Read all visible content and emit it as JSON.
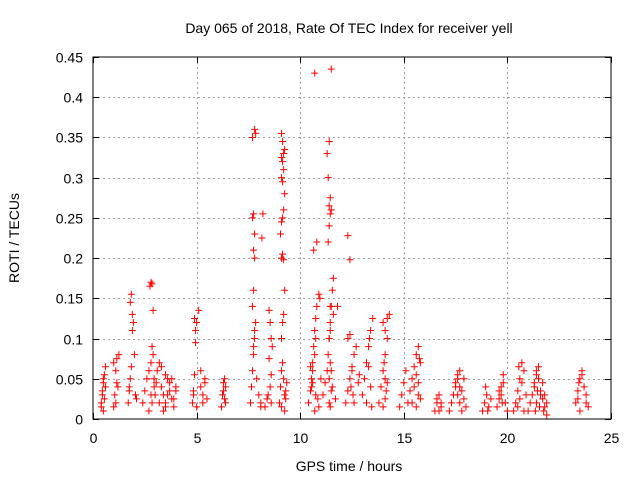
{
  "chart_data": {
    "type": "scatter",
    "title": "Day 065 of 2018, Rate Of TEC Index for receiver yell",
    "xlabel": "GPS time / hours",
    "ylabel": "ROTI / TECUs",
    "xlim": [
      0,
      25
    ],
    "ylim": [
      0,
      0.45
    ],
    "x_ticks": [
      0,
      5,
      10,
      15,
      20,
      25
    ],
    "x_tick_labels": [
      "0",
      "5",
      "10",
      "15",
      "20",
      "25"
    ],
    "y_ticks": [
      0,
      0.05,
      0.1,
      0.15,
      0.2,
      0.25,
      0.3,
      0.35,
      0.4,
      0.45
    ],
    "y_tick_labels": [
      "0",
      "0.05",
      "0.1",
      "0.15",
      "0.2",
      "0.25",
      "0.3",
      "0.35",
      "0.4",
      "0.45"
    ],
    "grid": true,
    "marker": "+",
    "marker_color": "#ff0000",
    "series": [
      {
        "name": "ROTI",
        "x": [
          0.4,
          0.45,
          0.5,
          0.55,
          0.6,
          0.5,
          0.45,
          0.55,
          0.6,
          0.4,
          0.5,
          1.0,
          1.05,
          1.1,
          1.15,
          1.2,
          1.1,
          1.0,
          1.15,
          1.25,
          1.7,
          1.75,
          1.8,
          1.85,
          1.9,
          1.95,
          1.8,
          1.85,
          1.9,
          1.75,
          2.0,
          2.05,
          2.1,
          2.4,
          2.5,
          2.6,
          2.7,
          2.8,
          2.85,
          2.9,
          2.95,
          2.75,
          2.8,
          2.85,
          2.9,
          2.7,
          2.95,
          2.8,
          2.85,
          3.0,
          3.05,
          3.1,
          3.2,
          3.3,
          3.4,
          3.5,
          3.6,
          3.7,
          3.8,
          3.9,
          4.0,
          3.3,
          3.5,
          3.7,
          3.4,
          3.6,
          3.2,
          3.8,
          4.0,
          3.9,
          3.5,
          4.8,
          4.85,
          4.9,
          4.95,
          5.0,
          5.1,
          5.2,
          5.3,
          5.4,
          5.5,
          4.9,
          4.95,
          5.0,
          5.2,
          5.4,
          4.85,
          5.3,
          6.2,
          6.25,
          6.3,
          6.35,
          6.4,
          6.3,
          6.35,
          6.4,
          7.6,
          7.65,
          7.7,
          7.75,
          7.8,
          7.85,
          7.7,
          7.75,
          7.8,
          7.75,
          7.8,
          7.7,
          7.75,
          7.8,
          7.85,
          7.7,
          7.9,
          8.0,
          8.1,
          7.75,
          7.8,
          8.1,
          8.15,
          8.2,
          8.5,
          8.55,
          8.6,
          8.65,
          8.5,
          8.6,
          8.55,
          8.45,
          8.6,
          8.3,
          8.4,
          9.0,
          9.05,
          9.1,
          9.15,
          9.2,
          9.25,
          9.3,
          9.1,
          9.15,
          9.2,
          9.25,
          9.1,
          9.15,
          9.2,
          9.05,
          9.1,
          9.15,
          9.2,
          9.25,
          9.1,
          9.15,
          9.1,
          9.2,
          9.25,
          9.15,
          9.1,
          9.2,
          9.15,
          9.1,
          9.25,
          9.3,
          9.35,
          10.4,
          10.5,
          10.55,
          10.6,
          10.65,
          10.7,
          10.75,
          10.8,
          10.9,
          10.95,
          10.6,
          10.7,
          10.75,
          10.65,
          10.8,
          10.7,
          10.75,
          10.6,
          10.85,
          10.9,
          11.0,
          10.5,
          10.55,
          10.7,
          11.1,
          11.2,
          11.3,
          11.35,
          11.4,
          11.45,
          11.5,
          11.55,
          11.6,
          11.35,
          11.4,
          11.45,
          11.5,
          11.4,
          11.45,
          11.35,
          11.3,
          11.4,
          11.5,
          11.45,
          11.4,
          11.45,
          11.4,
          11.45,
          11.5,
          11.4,
          11.45,
          11.6,
          11.8,
          11.5,
          11.55,
          11.7,
          12.2,
          12.3,
          12.4,
          12.5,
          12.6,
          12.7,
          12.3,
          12.4,
          12.5,
          12.45,
          12.55,
          12.6,
          12.3,
          12.4,
          12.8,
          12.85,
          13.0,
          13.1,
          13.2,
          13.3,
          13.4,
          13.5,
          13.3,
          13.4,
          13.2,
          13.35,
          13.45,
          13.8,
          13.9,
          14.0,
          14.1,
          14.2,
          14.3,
          14.0,
          14.1,
          14.2,
          14.05,
          14.1,
          14.15,
          14.0,
          14.1,
          14.2,
          14.8,
          14.9,
          15.0,
          15.1,
          15.2,
          15.3,
          15.4,
          15.5,
          15.6,
          15.7,
          15.8,
          15.5,
          15.6,
          15.7,
          15.8,
          15.6,
          15.7,
          15.75,
          15.4,
          16.5,
          16.6,
          16.7,
          16.8,
          16.6,
          16.7,
          16.8,
          17.2,
          17.3,
          17.4,
          17.5,
          17.6,
          17.7,
          17.8,
          17.9,
          18.0,
          17.5,
          17.6,
          17.7,
          17.8,
          17.9,
          17.6,
          17.7,
          18.8,
          18.9,
          19.0,
          19.1,
          19.2,
          18.95,
          19.05,
          19.5,
          19.6,
          19.7,
          19.8,
          19.9,
          20.0,
          19.7,
          19.8,
          19.6,
          19.75,
          20.3,
          20.4,
          20.5,
          20.6,
          20.7,
          20.8,
          20.9,
          20.5,
          20.6,
          20.7,
          20.55,
          20.8,
          21.0,
          21.1,
          21.2,
          21.3,
          21.4,
          21.5,
          21.6,
          21.7,
          21.8,
          21.9,
          21.3,
          21.4,
          21.5,
          21.4,
          21.6,
          21.35,
          21.7,
          21.45,
          21.55,
          21.8,
          21.9,
          21.75,
          23.3,
          23.4,
          23.5,
          23.6,
          23.7,
          23.8,
          23.9,
          23.4,
          23.5,
          23.45,
          23.6,
          23.8
        ],
        "y": [
          0.02,
          0.035,
          0.045,
          0.055,
          0.065,
          0.01,
          0.03,
          0.025,
          0.04,
          0.015,
          0.05,
          0.015,
          0.03,
          0.02,
          0.045,
          0.04,
          0.06,
          0.07,
          0.075,
          0.08,
          0.02,
          0.035,
          0.05,
          0.065,
          0.13,
          0.12,
          0.145,
          0.155,
          0.11,
          0.04,
          0.08,
          0.03,
          0.025,
          0.02,
          0.035,
          0.05,
          0.06,
          0.07,
          0.09,
          0.08,
          0.05,
          0.165,
          0.17,
          0.168,
          0.135,
          0.01,
          0.04,
          0.03,
          0.02,
          0.03,
          0.045,
          0.06,
          0.07,
          0.04,
          0.03,
          0.02,
          0.05,
          0.035,
          0.025,
          0.015,
          0.04,
          0.065,
          0.055,
          0.045,
          0.01,
          0.03,
          0.02,
          0.05,
          0.035,
          0.025,
          0.015,
          0.02,
          0.035,
          0.055,
          0.095,
          0.12,
          0.135,
          0.04,
          0.03,
          0.05,
          0.025,
          0.125,
          0.11,
          0.015,
          0.06,
          0.045,
          0.03,
          0.02,
          0.015,
          0.03,
          0.045,
          0.05,
          0.02,
          0.035,
          0.025,
          0.04,
          0.02,
          0.04,
          0.06,
          0.08,
          0.1,
          0.12,
          0.14,
          0.16,
          0.2,
          0.21,
          0.23,
          0.25,
          0.255,
          0.36,
          0.355,
          0.35,
          0.05,
          0.03,
          0.015,
          0.09,
          0.11,
          0.02,
          0.225,
          0.255,
          0.135,
          0.12,
          0.1,
          0.09,
          0.075,
          0.055,
          0.04,
          0.03,
          0.02,
          0.015,
          0.025,
          0.02,
          0.04,
          0.06,
          0.07,
          0.05,
          0.03,
          0.025,
          0.1,
          0.12,
          0.13,
          0.16,
          0.2,
          0.205,
          0.198,
          0.23,
          0.245,
          0.25,
          0.26,
          0.28,
          0.3,
          0.32,
          0.325,
          0.33,
          0.335,
          0.345,
          0.355,
          0.31,
          0.295,
          0.015,
          0.01,
          0.035,
          0.045,
          0.02,
          0.035,
          0.05,
          0.07,
          0.09,
          0.11,
          0.125,
          0.14,
          0.155,
          0.15,
          0.06,
          0.08,
          0.1,
          0.21,
          0.22,
          0.43,
          0.03,
          0.045,
          0.025,
          0.015,
          0.05,
          0.065,
          0.04,
          0.01,
          0.03,
          0.045,
          0.06,
          0.08,
          0.1,
          0.12,
          0.14,
          0.16,
          0.175,
          0.22,
          0.24,
          0.255,
          0.26,
          0.265,
          0.275,
          0.3,
          0.33,
          0.345,
          0.435,
          0.14,
          0.1,
          0.11,
          0.02,
          0.015,
          0.035,
          0.05,
          0.07,
          0.13,
          0.14,
          0.06,
          0.04,
          0.025,
          0.02,
          0.035,
          0.05,
          0.065,
          0.08,
          0.09,
          0.1,
          0.105,
          0.06,
          0.04,
          0.03,
          0.02,
          0.228,
          0.198,
          0.045,
          0.055,
          0.03,
          0.05,
          0.07,
          0.09,
          0.11,
          0.125,
          0.065,
          0.04,
          0.02,
          0.1,
          0.015,
          0.02,
          0.04,
          0.06,
          0.08,
          0.1,
          0.13,
          0.12,
          0.11,
          0.125,
          0.07,
          0.05,
          0.035,
          0.015,
          0.025,
          0.045,
          0.015,
          0.03,
          0.045,
          0.06,
          0.02,
          0.035,
          0.05,
          0.065,
          0.08,
          0.09,
          0.07,
          0.04,
          0.055,
          0.03,
          0.025,
          0.015,
          0.045,
          0.075,
          0.02,
          0.01,
          0.02,
          0.03,
          0.015,
          0.025,
          0.01,
          0.02,
          0.01,
          0.02,
          0.03,
          0.04,
          0.05,
          0.06,
          0.035,
          0.025,
          0.015,
          0.045,
          0.03,
          0.02,
          0.01,
          0.05,
          0.055,
          0.04,
          0.01,
          0.02,
          0.03,
          0.015,
          0.025,
          0.04,
          0.01,
          0.015,
          0.025,
          0.04,
          0.055,
          0.02,
          0.01,
          0.03,
          0.045,
          0.035,
          0.02,
          0.01,
          0.02,
          0.035,
          0.05,
          0.07,
          0.06,
          0.03,
          0.015,
          0.025,
          0.045,
          0.065,
          0.01,
          0.01,
          0.02,
          0.03,
          0.045,
          0.06,
          0.05,
          0.035,
          0.025,
          0.015,
          0.005,
          0.04,
          0.055,
          0.065,
          0.02,
          0.03,
          0.01,
          0.045,
          0.035,
          0.015,
          0.03,
          0.02,
          0.01,
          0.02,
          0.035,
          0.05,
          0.06,
          0.04,
          0.03,
          0.015,
          0.025,
          0.01,
          0.045,
          0.055,
          0.02
        ]
      }
    ]
  }
}
